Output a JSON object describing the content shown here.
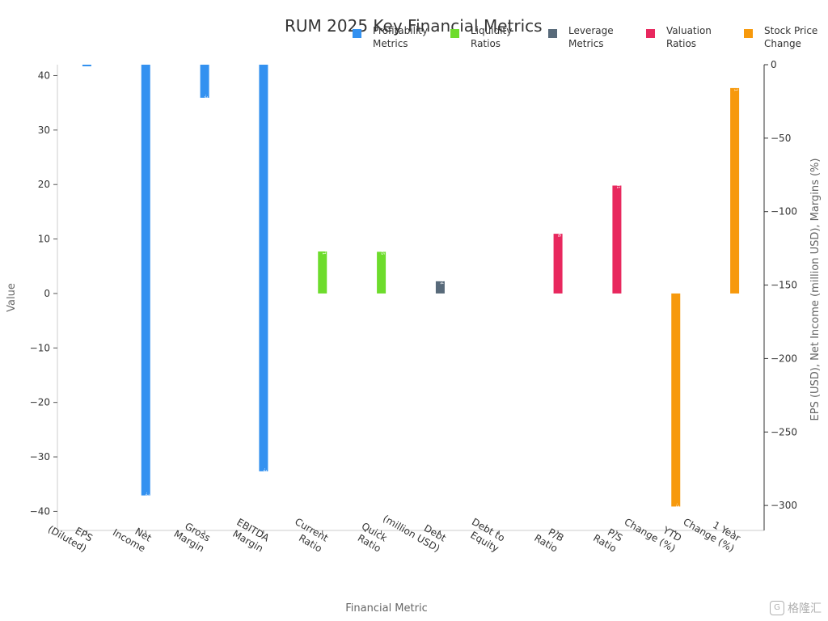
{
  "chart_data": {
    "type": "bar",
    "title": "RUM 2025 Key Financial Metrics",
    "xlabel": "Financial Metric",
    "ylabel": "Value",
    "y2label": "EPS (USD), Net Income (million USD), Margins (%)",
    "ylim": [
      -43.5,
      42
    ],
    "y2lim": [
      -317,
      0
    ],
    "yticks": [
      40,
      30,
      20,
      10,
      0,
      -10,
      -20,
      -30,
      -40
    ],
    "y2ticks": [
      0,
      -50,
      -100,
      -150,
      -200,
      -250,
      -300
    ],
    "grid": false,
    "legend_position": "top-right",
    "categories": [
      "EPS\n(Diluted)",
      "Net\nIncome",
      "Gross\nMargin",
      "EBITDA\nMargin",
      "Current\nRatio",
      "Quick\nRatio",
      "Debt\n(million USD)",
      "Debt to\nEquity",
      "P/B\nRatio",
      "P/S\nRatio",
      "YTD\nChange (%)",
      "1 Year\nChange (%)"
    ],
    "series": [
      {
        "name": "Profitability Metrics",
        "color": "#3391f0",
        "axis": "right",
        "values": [
          -0.23,
          -293.17,
          -22.5,
          -276.75,
          null,
          null,
          null,
          null,
          null,
          null,
          null,
          null
        ],
        "labels": [
          "",
          "-293.17",
          "-22.5",
          "-276.75",
          "",
          "",
          "",
          "",
          "",
          "",
          "",
          ""
        ]
      },
      {
        "name": "Liquidity Ratios",
        "color": "#6ddc2c",
        "axis": "left",
        "values": [
          null,
          null,
          null,
          null,
          7.71,
          7.65,
          null,
          null,
          null,
          null,
          null,
          null
        ],
        "labels": [
          "",
          "",
          "",
          "",
          "7.71",
          "7.65",
          "",
          "",
          "",
          "",
          "",
          ""
        ]
      },
      {
        "name": "Leverage Metrics",
        "color": "#586a7a",
        "axis": "left",
        "values": [
          null,
          null,
          null,
          null,
          null,
          null,
          2.24,
          null,
          null,
          null,
          null,
          null
        ],
        "labels": [
          "",
          "",
          "",
          "",
          "",
          "",
          "2.24",
          "",
          "",
          "",
          "",
          ""
        ]
      },
      {
        "name": "Valuation Ratios",
        "color": "#e8285e",
        "axis": "left",
        "values": [
          null,
          null,
          null,
          null,
          null,
          null,
          null,
          null,
          10.96,
          19.81,
          null,
          null
        ],
        "labels": [
          "",
          "",
          "",
          "",
          "",
          "",
          "",
          "",
          "10.96",
          "19.81",
          "",
          ""
        ]
      },
      {
        "name": "Stock Price Change",
        "color": "#f7990c",
        "axis": "left",
        "values": [
          null,
          null,
          null,
          null,
          null,
          null,
          null,
          null,
          null,
          null,
          -39.11,
          37.71
        ],
        "labels": [
          "",
          "",
          "",
          "",
          "",
          "",
          "",
          "",
          "",
          "",
          "-39.11",
          "37.71"
        ]
      }
    ]
  },
  "legend": [
    {
      "label": "Profitability\nMetrics",
      "color": "#3391f0"
    },
    {
      "label": "Liquidity\nRatios",
      "color": "#6ddc2c"
    },
    {
      "label": "Leverage\nMetrics",
      "color": "#586a7a"
    },
    {
      "label": "Valuation\nRatios",
      "color": "#e8285e"
    },
    {
      "label": "Stock Price\nChange",
      "color": "#f7990c"
    }
  ],
  "watermark": "格隆汇",
  "watermark_icon": "G"
}
